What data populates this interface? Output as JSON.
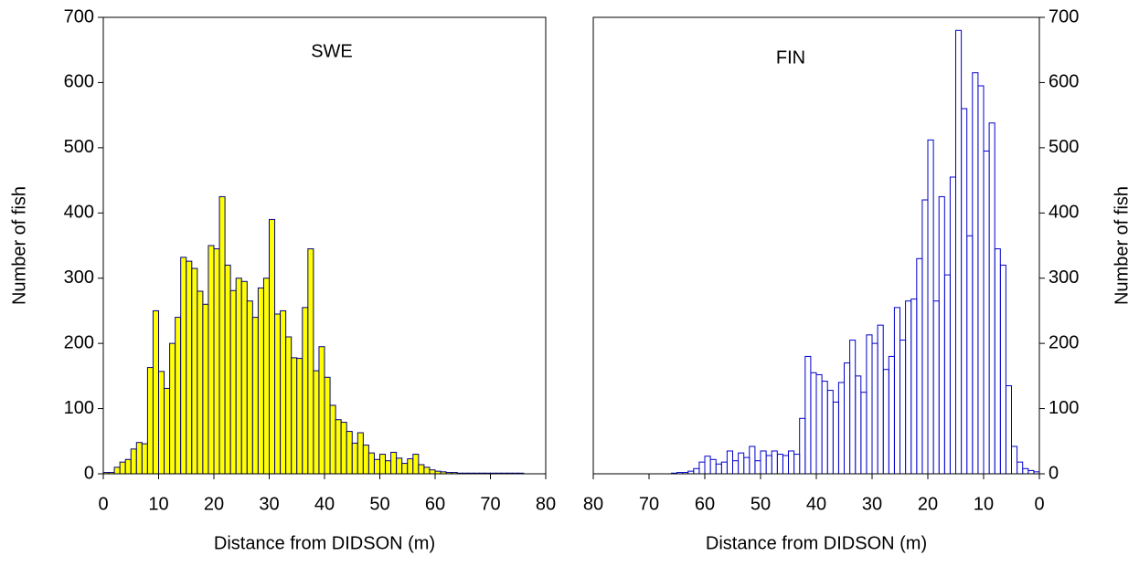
{
  "chart_data": [
    {
      "type": "histogram",
      "title": "SWE",
      "x_label": "Distance from DIDSON (m)",
      "y_label": "Number of fish",
      "y_axis_side": "left",
      "color": "#000080",
      "fill_color": "#ffff00",
      "bins": [
        0,
        1,
        2,
        3,
        4,
        5,
        6,
        7,
        8,
        9,
        10,
        11,
        12,
        13,
        14,
        15,
        16,
        17,
        18,
        19,
        20,
        21,
        22,
        23,
        24,
        25,
        26,
        27,
        28,
        29,
        30,
        31,
        32,
        33,
        34,
        35,
        36,
        37,
        38,
        39,
        40,
        41,
        42,
        43,
        44,
        45,
        46,
        47,
        48,
        49,
        50,
        51,
        52,
        53,
        54,
        55,
        56,
        57,
        58,
        59,
        60,
        61,
        62,
        63,
        64,
        65,
        66,
        67,
        68,
        69,
        70,
        71,
        72,
        73,
        74,
        75,
        76
      ],
      "counts": [
        2,
        2,
        10,
        18,
        22,
        38,
        48,
        46,
        163,
        250,
        157,
        131,
        200,
        240,
        332,
        326,
        315,
        280,
        260,
        350,
        345,
        425,
        320,
        281,
        300,
        295,
        265,
        240,
        285,
        300,
        390,
        245,
        250,
        210,
        178,
        177,
        255,
        345,
        158,
        195,
        148,
        105,
        83,
        79,
        65,
        47,
        63,
        44,
        32,
        22,
        30,
        20,
        33,
        24,
        16,
        23,
        30,
        14,
        10,
        6,
        4,
        3,
        2,
        2,
        1,
        1,
        1,
        1,
        1,
        1,
        1,
        1,
        1,
        1,
        1,
        1
      ],
      "xlim": [
        0,
        80
      ],
      "xticks": [
        0,
        10,
        20,
        30,
        40,
        50,
        60,
        70,
        80
      ],
      "ylim": [
        0,
        700
      ],
      "yticks": [
        0,
        100,
        200,
        300,
        400,
        500,
        600,
        700
      ]
    },
    {
      "type": "histogram",
      "title": "FIN",
      "x_label": "Distance from DIDSON (m)",
      "y_label": "Number of fish",
      "y_axis_side": "right",
      "color": "#0000cc",
      "fill_color": "#ffffff",
      "bins": [
        0,
        1,
        2,
        3,
        4,
        5,
        6,
        7,
        8,
        9,
        10,
        11,
        12,
        13,
        14,
        15,
        16,
        17,
        18,
        19,
        20,
        21,
        22,
        23,
        24,
        25,
        26,
        27,
        28,
        29,
        30,
        31,
        32,
        33,
        34,
        35,
        36,
        37,
        38,
        39,
        40,
        41,
        42,
        43,
        44,
        45,
        46,
        47,
        48,
        49,
        50,
        51,
        52,
        53,
        54,
        55,
        56,
        57,
        58,
        59,
        60,
        61,
        62,
        63,
        64,
        65,
        66
      ],
      "counts": [
        3,
        5,
        8,
        18,
        42,
        135,
        320,
        345,
        538,
        495,
        595,
        615,
        365,
        560,
        680,
        455,
        305,
        425,
        265,
        512,
        420,
        330,
        268,
        265,
        205,
        255,
        180,
        160,
        228,
        200,
        213,
        125,
        150,
        205,
        170,
        140,
        110,
        128,
        142,
        152,
        155,
        180,
        85,
        30,
        35,
        28,
        30,
        35,
        28,
        35,
        20,
        42,
        25,
        32,
        20,
        35,
        18,
        15,
        22,
        27,
        18,
        8,
        4,
        2,
        2,
        1
      ],
      "xlim": [
        80,
        0
      ],
      "xticks": [
        80,
        70,
        60,
        50,
        40,
        30,
        20,
        10,
        0
      ],
      "ylim": [
        0,
        700
      ],
      "yticks": [
        0,
        100,
        200,
        300,
        400,
        500,
        600,
        700
      ]
    }
  ]
}
